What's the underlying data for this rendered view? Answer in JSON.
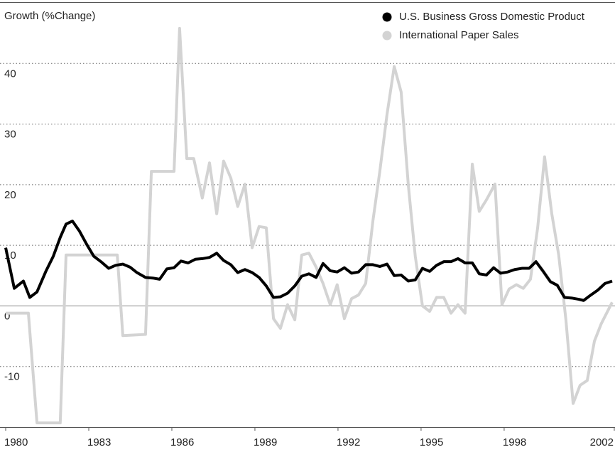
{
  "chart_data": {
    "type": "line",
    "y_label": "Growth (%Change)",
    "xlim": [
      1980,
      2001.9
    ],
    "xticks": [
      1980,
      1983,
      1986,
      1989,
      1992,
      1995,
      1998,
      2002
    ],
    "ylim": [
      -20,
      50
    ],
    "yticks": [
      -10,
      0,
      10,
      20,
      30,
      40
    ],
    "grid": true,
    "legend": "top-right",
    "series": [
      {
        "name": "U.S. Business Gross Domestic Product",
        "color": "#000000",
        "x": [
          1980,
          1980.31,
          1980.64,
          1980.87,
          1981.13,
          1981.46,
          1981.72,
          1981.97,
          1982.18,
          1982.41,
          1982.67,
          1982.92,
          1983.18,
          1983.44,
          1983.72,
          1983.97,
          1984.23,
          1984.49,
          1984.74,
          1985.05,
          1985.31,
          1985.56,
          1985.82,
          1986.08,
          1986.33,
          1986.59,
          1986.85,
          1987.1,
          1987.36,
          1987.62,
          1987.87,
          1988.13,
          1988.38,
          1988.64,
          1988.9,
          1989.15,
          1989.41,
          1989.67,
          1989.92,
          1990.18,
          1990.44,
          1990.69,
          1990.95,
          1991.21,
          1991.46,
          1991.72,
          1991.97,
          1992.23,
          1992.49,
          1992.74,
          1993.0,
          1993.26,
          1993.51,
          1993.77,
          1994.03,
          1994.28,
          1994.54,
          1994.79,
          1995.05,
          1995.31,
          1995.56,
          1995.82,
          1996.08,
          1996.33,
          1996.59,
          1996.85,
          1997.1,
          1997.36,
          1997.62,
          1997.87,
          1998.13,
          1998.38,
          1998.64,
          1998.9,
          1999.15,
          1999.41,
          1999.67,
          1999.92,
          2000.18,
          2000.44,
          2000.69,
          2000.87,
          2001.13,
          2001.38,
          2001.64,
          2001.9
        ],
        "values": [
          9.6,
          2.9,
          4.1,
          1.4,
          2.3,
          5.8,
          8.2,
          11.3,
          13.5,
          14.0,
          12.3,
          10.2,
          8.2,
          7.3,
          6.2,
          6.7,
          6.9,
          6.4,
          5.5,
          4.7,
          4.6,
          4.4,
          6.1,
          6.3,
          7.4,
          7.1,
          7.7,
          7.8,
          8.0,
          8.7,
          7.5,
          6.8,
          5.5,
          6.0,
          5.5,
          4.7,
          3.3,
          1.4,
          1.5,
          2.1,
          3.3,
          4.9,
          5.3,
          4.7,
          7.0,
          5.8,
          5.6,
          6.3,
          5.4,
          5.6,
          6.8,
          6.8,
          6.5,
          6.9,
          5.0,
          5.1,
          4.1,
          4.3,
          6.2,
          5.7,
          6.7,
          7.3,
          7.3,
          7.8,
          7.1,
          7.1,
          5.3,
          5.1,
          6.3,
          5.4,
          5.6,
          6.0,
          6.2,
          6.2,
          7.3,
          5.7,
          4.0,
          3.4,
          1.4,
          1.3,
          1.1,
          0.9,
          1.8,
          2.6,
          3.7,
          4.1
        ]
      },
      {
        "name": "International Paper Sales",
        "color": "#d3d3d3",
        "x": [
          1980,
          1980.82,
          1981.13,
          1981.97,
          1982.18,
          1984.03,
          1984.23,
          1985.05,
          1985.26,
          1986.08,
          1986.28,
          1986.54,
          1986.79,
          1987.1,
          1987.36,
          1987.62,
          1987.87,
          1988.13,
          1988.38,
          1988.64,
          1988.9,
          1989.15,
          1989.41,
          1989.67,
          1989.92,
          1990.18,
          1990.44,
          1990.69,
          1990.95,
          1991.21,
          1991.46,
          1991.72,
          1991.97,
          1992.23,
          1992.49,
          1992.74,
          1993.0,
          1993.26,
          1993.51,
          1993.77,
          1994.03,
          1994.28,
          1994.54,
          1994.79,
          1995.05,
          1995.31,
          1995.56,
          1995.82,
          1996.08,
          1996.33,
          1996.59,
          1996.85,
          1997.1,
          1997.36,
          1997.67,
          1997.92,
          1998.18,
          1998.44,
          1998.69,
          1998.95,
          1999.21,
          1999.46,
          1999.72,
          1999.97,
          2000.23,
          2000.49,
          2000.74,
          2001.0,
          2001.26,
          2001.51,
          2001.9
        ],
        "values": [
          -1.2,
          -1.2,
          -19.3,
          -19.3,
          8.4,
          8.4,
          -4.9,
          -4.7,
          22.2,
          22.2,
          45.8,
          24.3,
          24.3,
          17.8,
          23.6,
          15.2,
          23.9,
          21.1,
          16.4,
          20.1,
          9.6,
          13.1,
          12.9,
          -2.1,
          -3.7,
          0.2,
          -2.3,
          8.4,
          8.7,
          6.4,
          3.7,
          0.2,
          3.5,
          -2.1,
          1.2,
          1.8,
          3.7,
          14.0,
          22.2,
          31.6,
          39.5,
          35.3,
          19.9,
          8.2,
          0,
          -0.9,
          1.4,
          1.4,
          -1.2,
          0.2,
          -1.2,
          23.4,
          15.6,
          17.5,
          20.1,
          0.2,
          2.8,
          3.5,
          2.9,
          4.4,
          12.9,
          24.6,
          15.2,
          8.4,
          -2.3,
          -16.1,
          -13.1,
          -12.3,
          -5.8,
          -2.9,
          0.6
        ]
      }
    ]
  }
}
